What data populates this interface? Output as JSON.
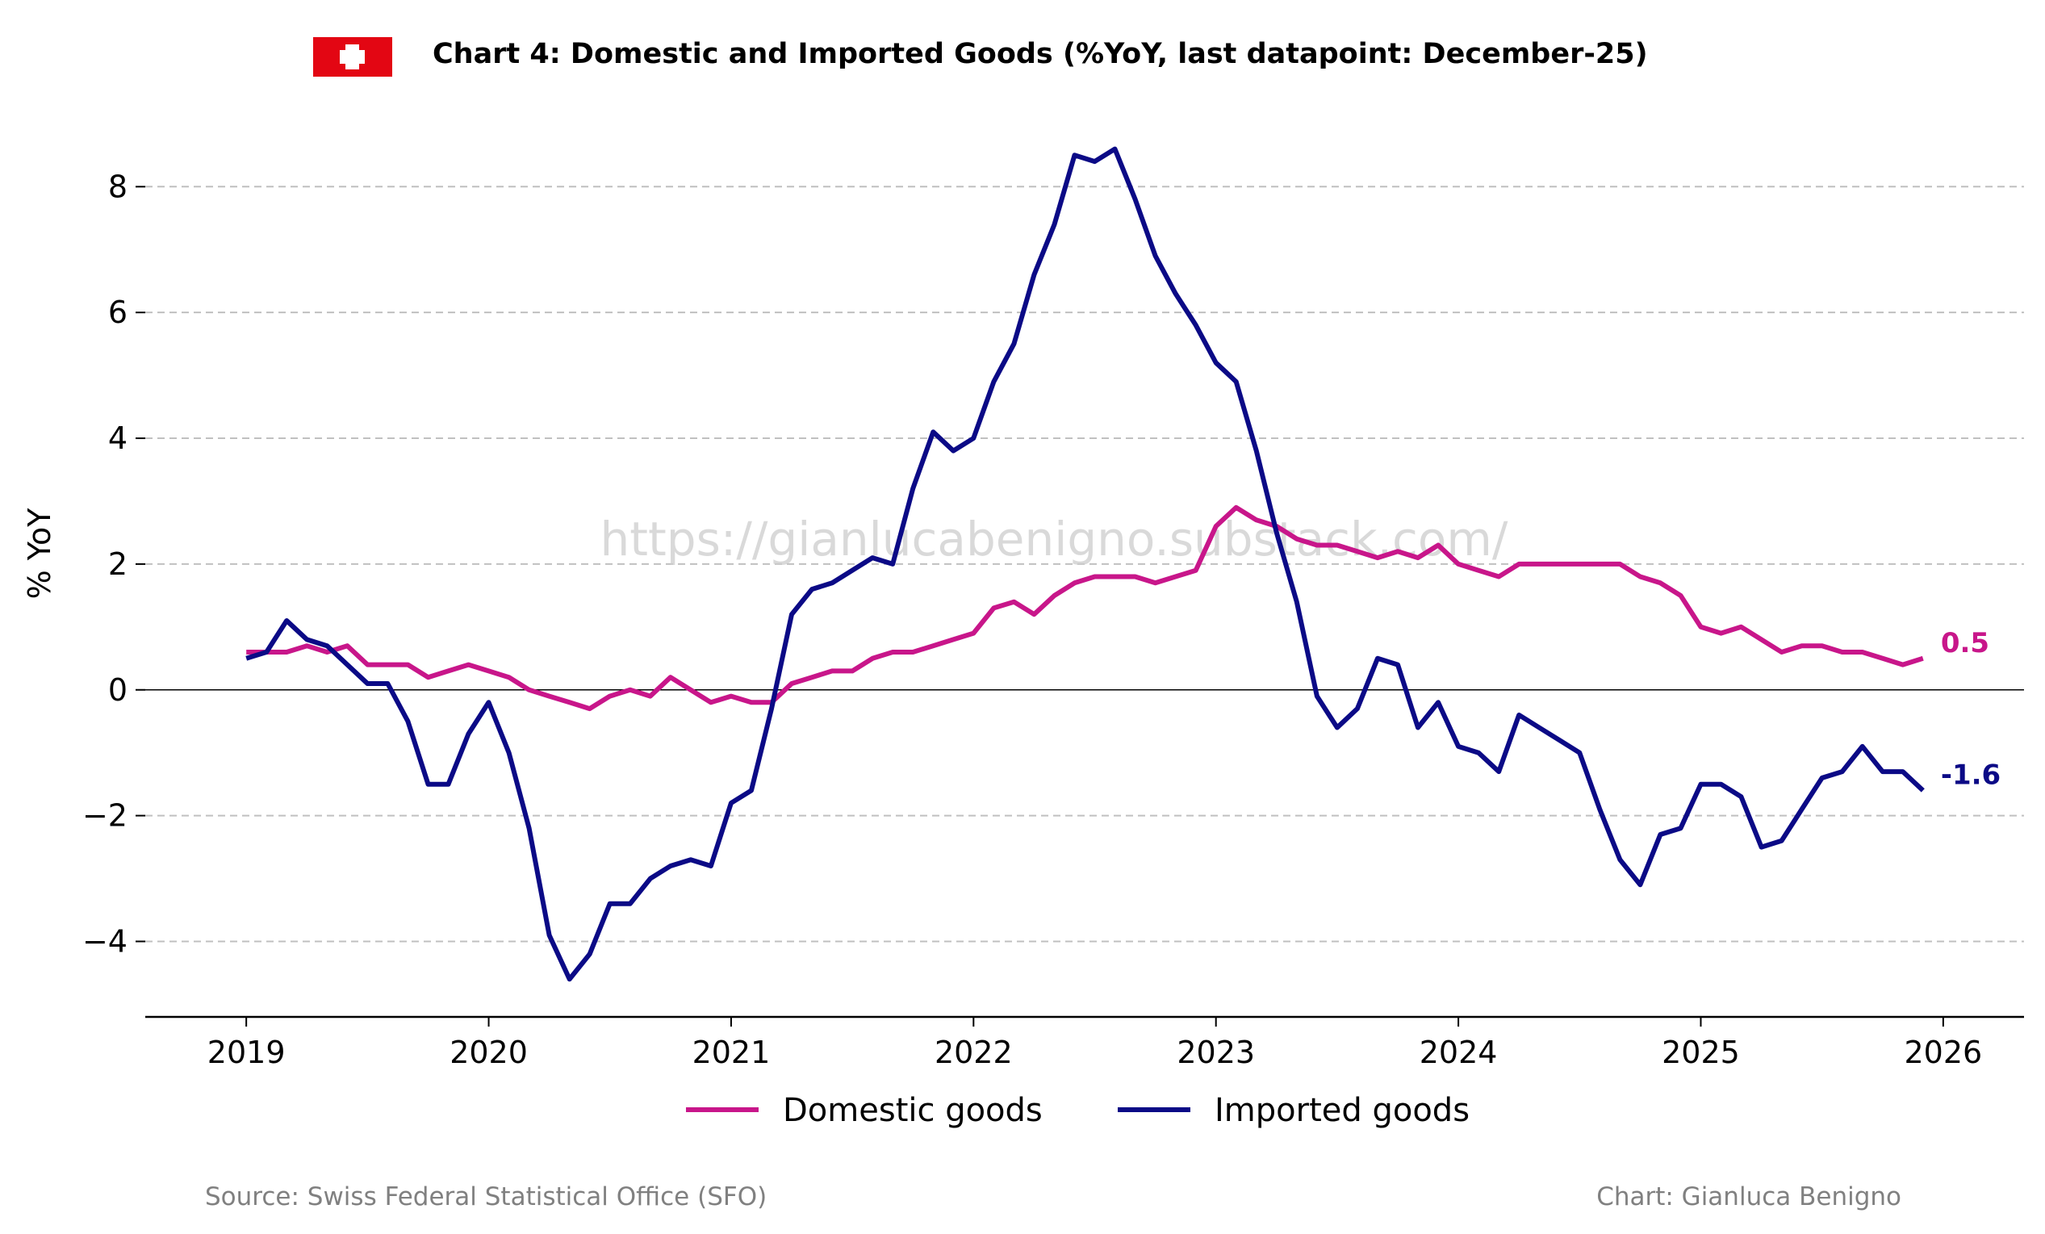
{
  "title": "Chart 4: Domestic and Imported Goods (%YoY, last datapoint: December-25)",
  "watermark": "https://gianlucabenigno.substack.com/",
  "source": "Source: Swiss Federal Statistical Office (SFO)",
  "credit": "Chart: Gianluca Benigno",
  "flag_icon": "swiss-flag-icon",
  "colors": {
    "domestic": "#c8168a",
    "imported": "#0b0a86",
    "grid": "#c0c0c0",
    "zero_line": "#000000"
  },
  "chart_data": {
    "type": "line",
    "ylabel": "% YoY",
    "xlabel": "",
    "ylim": [
      -5.2,
      9.3
    ],
    "xlim": [
      "2018-08",
      "2026-05"
    ],
    "y_ticks": [
      8,
      6,
      4,
      2,
      0,
      -2,
      -4
    ],
    "y_tick_labels": [
      "8",
      "6",
      "4",
      "2",
      "0",
      "−2",
      "−4"
    ],
    "x_ticks": [
      "2019",
      "2020",
      "2021",
      "2022",
      "2023",
      "2024",
      "2025",
      "2026"
    ],
    "grid": "horizontal dashed",
    "legend_position": "bottom-center",
    "x_start": "2019-01",
    "x_frequency": "monthly",
    "series": [
      {
        "name": "Domestic goods",
        "color": "#c8168a",
        "end_label": "0.5",
        "values": [
          0.6,
          0.6,
          0.6,
          0.7,
          0.6,
          0.7,
          0.4,
          0.4,
          0.4,
          0.2,
          0.3,
          0.4,
          0.3,
          0.2,
          0.0,
          -0.1,
          -0.2,
          -0.3,
          -0.1,
          0.0,
          -0.1,
          0.2,
          0.0,
          -0.2,
          -0.1,
          -0.2,
          -0.2,
          0.1,
          0.2,
          0.3,
          0.3,
          0.5,
          0.6,
          0.6,
          0.7,
          0.8,
          0.9,
          1.3,
          1.4,
          1.2,
          1.5,
          1.7,
          1.8,
          1.8,
          1.8,
          1.7,
          1.8,
          1.9,
          2.6,
          2.9,
          2.7,
          2.6,
          2.4,
          2.3,
          2.3,
          2.2,
          2.1,
          2.2,
          2.1,
          2.3,
          2.0,
          1.9,
          1.8,
          2.0,
          2.0,
          2.0,
          2.0,
          2.0,
          2.0,
          1.8,
          1.7,
          1.5,
          1.0,
          0.9,
          1.0,
          0.8,
          0.6,
          0.7,
          0.7,
          0.6,
          0.6,
          0.5,
          0.4,
          0.5
        ]
      },
      {
        "name": "Imported goods",
        "color": "#0b0a86",
        "end_label": "-1.6",
        "values": [
          0.5,
          0.6,
          1.1,
          0.8,
          0.7,
          0.4,
          0.1,
          0.1,
          -0.5,
          -1.5,
          -1.5,
          -0.7,
          -0.2,
          -1.0,
          -2.2,
          -3.9,
          -4.6,
          -4.2,
          -3.4,
          -3.4,
          -3.0,
          -2.8,
          -2.7,
          -2.8,
          -1.8,
          -1.6,
          -0.3,
          1.2,
          1.6,
          1.7,
          1.9,
          2.1,
          2.0,
          3.2,
          4.1,
          3.8,
          4.0,
          4.9,
          5.5,
          6.6,
          7.4,
          8.5,
          8.4,
          8.6,
          7.8,
          6.9,
          6.3,
          5.8,
          5.2,
          4.9,
          3.8,
          2.5,
          1.4,
          -0.1,
          -0.6,
          -0.3,
          0.5,
          0.4,
          -0.6,
          -0.2,
          -0.9,
          -1.0,
          -1.3,
          -0.4,
          -0.6,
          -0.8,
          -1.0,
          -1.9,
          -2.7,
          -3.1,
          -2.3,
          -2.2,
          -1.5,
          -1.5,
          -1.7,
          -2.5,
          -2.4,
          -1.9,
          -1.4,
          -1.3,
          -0.9,
          -1.3,
          -1.3,
          -1.6
        ]
      }
    ]
  }
}
